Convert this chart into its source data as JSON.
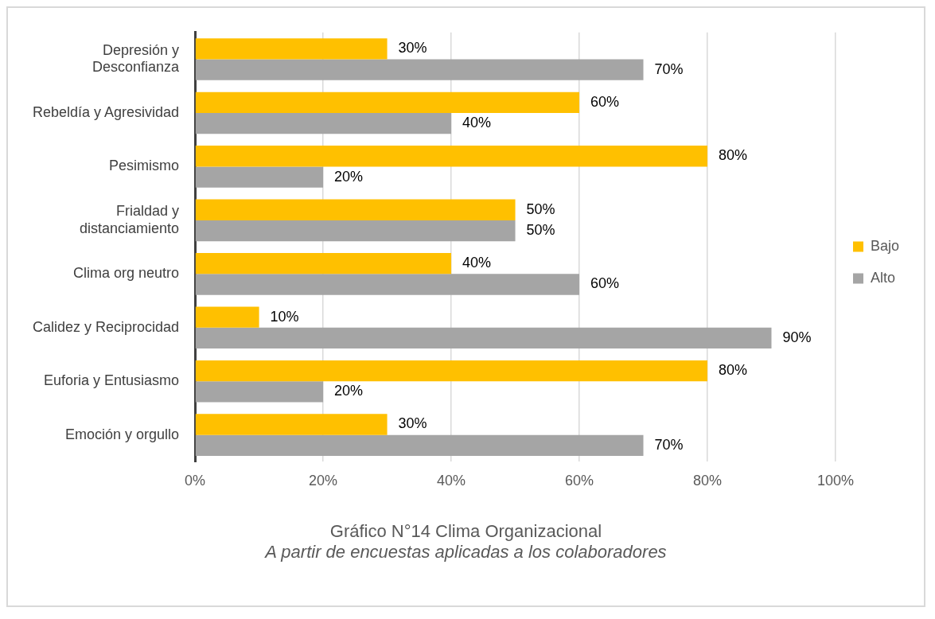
{
  "chart_data": {
    "type": "bar",
    "orientation": "horizontal",
    "title": "Gráfico N°14 Clima Organizacional",
    "subtitle": "A partir de encuestas aplicadas a los colaboradores",
    "categories": [
      "Depresión y\nDesconfianza",
      "Rebeldía y Agresividad",
      "Pesimismo",
      "Frialdad y\ndistanciamiento",
      "Clima org neutro",
      "Calidez y Reciprocidad",
      "Euforia y Entusiasmo",
      "Emoción y orgullo"
    ],
    "series": [
      {
        "name": "Bajo",
        "color": "#ffc000",
        "values": [
          30,
          60,
          80,
          50,
          40,
          10,
          80,
          30
        ],
        "value_labels": [
          "30%",
          "60%",
          "80%",
          "50%",
          "40%",
          "10%",
          "80%",
          "30%"
        ]
      },
      {
        "name": "Alto",
        "color": "#a5a5a5",
        "values": [
          70,
          40,
          20,
          50,
          60,
          90,
          20,
          70
        ],
        "value_labels": [
          "70%",
          "40%",
          "20%",
          "50%",
          "60%",
          "90%",
          "20%",
          "70%"
        ]
      }
    ],
    "xlim": [
      0,
      100
    ],
    "xticks": [
      {
        "value": 0,
        "label": "0%"
      },
      {
        "value": 20,
        "label": "20%"
      },
      {
        "value": 40,
        "label": "40%"
      },
      {
        "value": 60,
        "label": "60%"
      },
      {
        "value": 80,
        "label": "80%"
      },
      {
        "value": 100,
        "label": "100%"
      }
    ],
    "grid": "x",
    "legend": "right"
  }
}
